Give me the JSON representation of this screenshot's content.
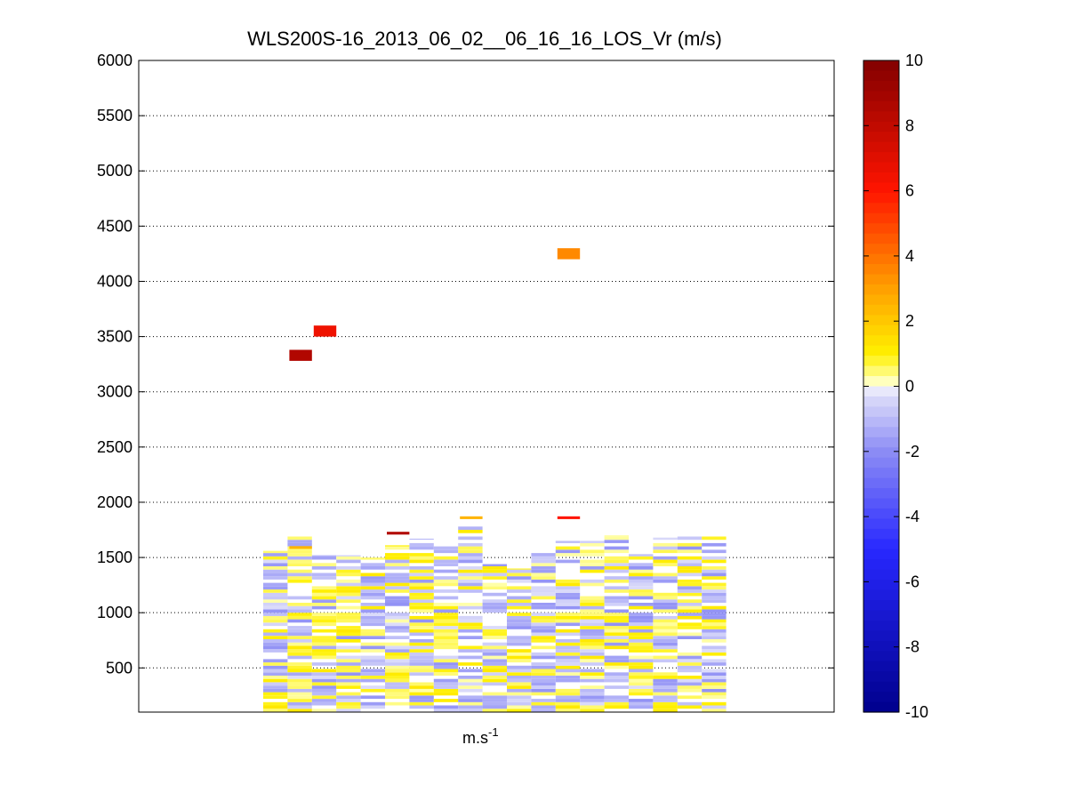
{
  "chart_data": {
    "type": "heatmap",
    "title": "WLS200S-16_2013_06_02__06_16_16_LOS_Vr (m/s)",
    "xlabel": "m.s",
    "xlabel_superscript": "-1",
    "ylabel": "",
    "ylim": [
      100,
      6000
    ],
    "yticks": [
      500,
      1000,
      1500,
      2000,
      2500,
      3000,
      3500,
      4000,
      4500,
      5000,
      5500,
      6000
    ],
    "grid": "y-dotted",
    "columns": 19,
    "column_range": [
      5,
      23
    ],
    "colorbar": {
      "min": -10,
      "max": 10,
      "ticks": [
        10,
        8,
        6,
        4,
        2,
        0,
        -2,
        -4,
        -6,
        -8,
        -10
      ],
      "colormap": "blue-white-yellow-red (jet-like diverging)"
    },
    "outliers": [
      {
        "column": 6,
        "alt": 3330,
        "value": 8.5
      },
      {
        "column": 7,
        "alt": 3550,
        "value": 6.5
      },
      {
        "column": 10,
        "alt": 1720,
        "value": 8.5
      },
      {
        "column": 13,
        "alt": 1860,
        "value": 2.5
      },
      {
        "column": 17,
        "alt": 4250,
        "value": 3.5
      },
      {
        "column": 17,
        "alt": 1860,
        "value": 6.0
      },
      {
        "column": 6,
        "alt": 1590,
        "value": 2.5
      }
    ],
    "column_tops": [
      1560,
      1700,
      1520,
      1520,
      1500,
      1610,
      1670,
      1600,
      1780,
      1440,
      1400,
      1540,
      1650,
      1650,
      1700,
      1530,
      1680,
      1720,
      1720
    ]
  }
}
